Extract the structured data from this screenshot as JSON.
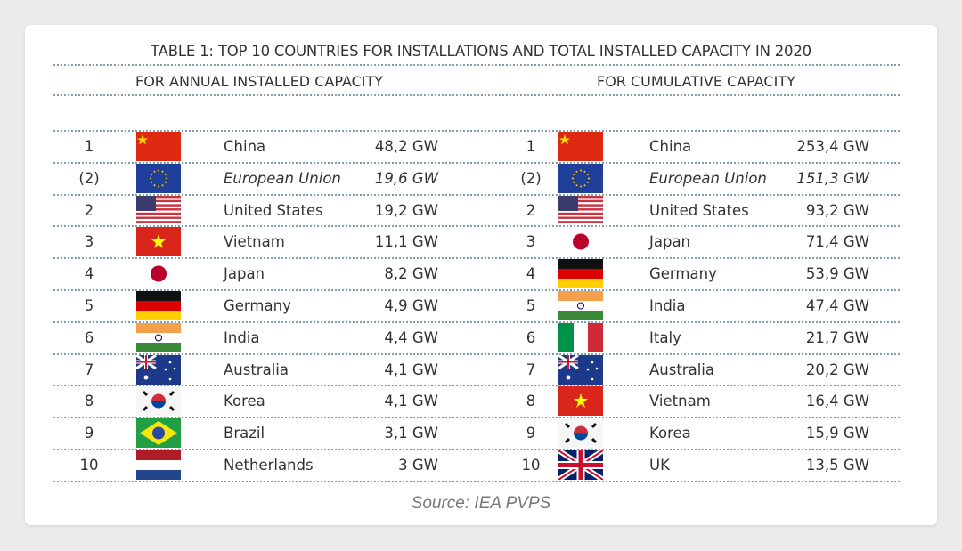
{
  "title": "TABLE 1: TOP 10 COUNTRIES FOR INSTALLATIONS AND TOTAL INSTALLED CAPACITY IN 2020",
  "annual": {
    "heading": "FOR ANNUAL INSTALLED CAPACITY",
    "rows": [
      {
        "rank": "1",
        "flag": "cn",
        "country": "China",
        "value": "48,2 GW",
        "italic": false
      },
      {
        "rank": "(2)",
        "flag": "eu",
        "country": "European Union",
        "value": "19,6 GW",
        "italic": true
      },
      {
        "rank": "2",
        "flag": "us",
        "country": "United States",
        "value": "19,2 GW",
        "italic": false
      },
      {
        "rank": "3",
        "flag": "vn",
        "country": "Vietnam",
        "value": "11,1 GW",
        "italic": false
      },
      {
        "rank": "4",
        "flag": "jp",
        "country": "Japan",
        "value": "8,2 GW",
        "italic": false
      },
      {
        "rank": "5",
        "flag": "de",
        "country": "Germany",
        "value": "4,9 GW",
        "italic": false
      },
      {
        "rank": "6",
        "flag": "in",
        "country": "India",
        "value": "4,4 GW",
        "italic": false
      },
      {
        "rank": "7",
        "flag": "au",
        "country": "Australia",
        "value": "4,1 GW",
        "italic": false
      },
      {
        "rank": "8",
        "flag": "kr",
        "country": "Korea",
        "value": "4,1 GW",
        "italic": false
      },
      {
        "rank": "9",
        "flag": "br",
        "country": "Brazil",
        "value": "3,1 GW",
        "italic": false
      },
      {
        "rank": "10",
        "flag": "nl",
        "country": "Netherlands",
        "value": "3 GW",
        "italic": false
      }
    ]
  },
  "cumulative": {
    "heading": "FOR CUMULATIVE CAPACITY",
    "rows": [
      {
        "rank": "1",
        "flag": "cn",
        "country": "China",
        "value": "253,4 GW",
        "italic": false
      },
      {
        "rank": "(2)",
        "flag": "eu",
        "country": "European Union",
        "value": "151,3 GW",
        "italic": true
      },
      {
        "rank": "2",
        "flag": "us",
        "country": "United States",
        "value": "93,2 GW",
        "italic": false
      },
      {
        "rank": "3",
        "flag": "jp",
        "country": "Japan",
        "value": "71,4 GW",
        "italic": false
      },
      {
        "rank": "4",
        "flag": "de",
        "country": "Germany",
        "value": "53,9 GW",
        "italic": false
      },
      {
        "rank": "5",
        "flag": "in",
        "country": "India",
        "value": "47,4 GW",
        "italic": false
      },
      {
        "rank": "6",
        "flag": "it",
        "country": "Italy",
        "value": "21,7 GW",
        "italic": false
      },
      {
        "rank": "7",
        "flag": "au",
        "country": "Australia",
        "value": "20,2 GW",
        "italic": false
      },
      {
        "rank": "8",
        "flag": "vn",
        "country": "Vietnam",
        "value": "16,4 GW",
        "italic": false
      },
      {
        "rank": "9",
        "flag": "kr",
        "country": "Korea",
        "value": "15,9 GW",
        "italic": false
      },
      {
        "rank": "10",
        "flag": "gb",
        "country": "UK",
        "value": "13,5 GW",
        "italic": false
      }
    ]
  },
  "source": "Source: IEA PVPS"
}
